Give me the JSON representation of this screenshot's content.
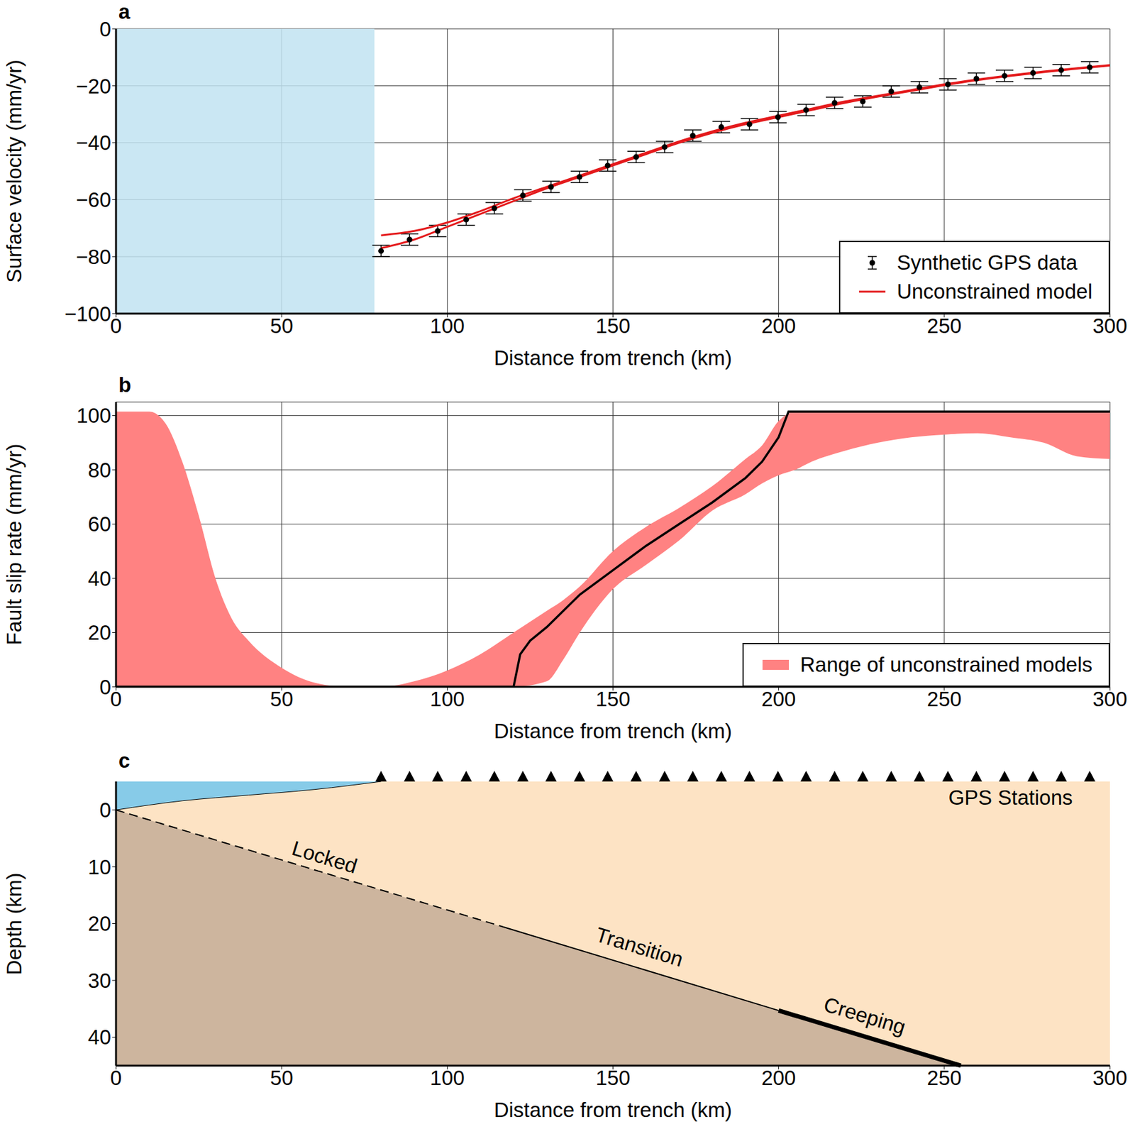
{
  "chart_data": [
    {
      "title": "a",
      "type": "line",
      "x_label": "Distance from trench (km)",
      "y_label": "Surface velocity (mm/yr)",
      "xlim": [
        0,
        300
      ],
      "xticks": [
        0,
        50,
        100,
        150,
        200,
        250,
        300
      ],
      "ylim": [
        -100,
        0
      ],
      "yticks": [
        {
          "value": -100,
          "label": "−100"
        },
        {
          "value": -80,
          "label": "−80"
        },
        {
          "value": -60,
          "label": "−60"
        },
        {
          "value": -40,
          "label": "−40"
        },
        {
          "value": -20,
          "label": "−20"
        },
        0
      ],
      "grid": true,
      "legend": "lower right",
      "shaded_region": {
        "x": [
          0,
          78
        ],
        "color": "#c1e3f1"
      },
      "series": [
        {
          "name": "Synthetic GPS data",
          "type": "scatter",
          "color": "#000000",
          "marker": "circle",
          "x": [
            80,
            88.6,
            97.1,
            105.7,
            114.2,
            122.8,
            131.3,
            139.9,
            148.4,
            157,
            165.6,
            174.1,
            182.7,
            191.2,
            199.8,
            208.3,
            216.9,
            225.4,
            234,
            242.5,
            251.1,
            259.7,
            268.2,
            276.8,
            285.3,
            293.9
          ],
          "values": [
            -78,
            -74,
            -71,
            -67,
            -63,
            -58.5,
            -55.5,
            -52,
            -48,
            -45,
            -41.5,
            -37.5,
            -34.5,
            -33.5,
            -31,
            -28.5,
            -26,
            -25.5,
            -22,
            -20.5,
            -19.5,
            -17.5,
            -16.5,
            -15.5,
            -14.5,
            -13.5
          ],
          "error": [
            2,
            2,
            2,
            2,
            2,
            2,
            2,
            2,
            2,
            2,
            2,
            2,
            2,
            2,
            2,
            2,
            2,
            2,
            2,
            2,
            2,
            2,
            2,
            2,
            2,
            2
          ]
        },
        {
          "name": "Unconstrained model",
          "type": "line",
          "color": "#e41a1c",
          "x": [
            80,
            90,
            100,
            110,
            120,
            130,
            140,
            150,
            160,
            170,
            180,
            190,
            200,
            210,
            220,
            230,
            240,
            250,
            260,
            270,
            280,
            290,
            300
          ],
          "upper": [
            -72.5,
            -71,
            -68,
            -64,
            -59.5,
            -55.5,
            -51.5,
            -47.5,
            -43.5,
            -39.5,
            -36,
            -33,
            -30.5,
            -28,
            -25.5,
            -23.5,
            -21.5,
            -19.5,
            -17.8,
            -16.3,
            -15,
            -13.8,
            -12.7
          ],
          "lower": [
            -77,
            -74,
            -69.5,
            -65,
            -60.5,
            -56,
            -52,
            -48,
            -44,
            -40,
            -36.5,
            -33.5,
            -31,
            -28.5,
            -26,
            -23.8,
            -21.8,
            -19.8,
            -18,
            -16.5,
            -15.2,
            -14,
            -12.9
          ]
        }
      ]
    },
    {
      "title": "b",
      "type": "line",
      "x_label": "Distance from trench (km)",
      "y_label": "Fault slip rate (mm/yr)",
      "xlim": [
        0,
        300
      ],
      "xticks": [
        0,
        50,
        100,
        150,
        200,
        250,
        300
      ],
      "ylim": [
        0,
        105
      ],
      "yticks": [
        0,
        20,
        40,
        60,
        80,
        100
      ],
      "grid": true,
      "legend": "lower right",
      "series": [
        {
          "name": "Range of unconstrained models",
          "type": "area",
          "color": "#ff8282",
          "x": [
            0,
            10,
            15,
            20,
            25,
            30,
            35,
            40,
            50,
            60,
            70,
            80,
            90,
            100,
            110,
            120,
            130,
            135,
            140,
            150,
            160,
            170,
            180,
            190,
            195,
            200,
            205,
            210,
            220,
            230,
            240,
            250,
            260,
            270,
            280,
            290,
            300
          ],
          "upper": [
            101.5,
            101.5,
            97,
            83,
            63,
            40,
            25,
            17,
            7,
            1.5,
            0,
            0,
            2,
            6,
            12,
            20,
            28,
            32,
            37,
            50,
            59,
            66,
            74,
            84,
            89,
            98,
            101.5,
            101.5,
            101.5,
            101.5,
            101.5,
            101.5,
            101.5,
            101.5,
            101.5,
            101.5,
            101.5
          ],
          "lower": [
            0,
            0,
            0,
            0,
            0,
            0,
            0,
            0,
            0,
            0,
            0,
            0,
            0,
            0,
            0,
            0,
            2,
            10,
            20,
            36,
            45,
            54,
            65,
            71,
            75,
            78,
            80,
            83,
            87,
            90,
            92,
            93,
            93.5,
            92,
            90,
            85,
            84
          ]
        },
        {
          "type": "line",
          "color": "#000000",
          "x": [
            0,
            120,
            122,
            125,
            130,
            140,
            150,
            160,
            170,
            180,
            190,
            195,
            200,
            203,
            300
          ],
          "values": [
            0,
            0,
            12,
            17,
            22,
            34,
            43,
            52,
            60,
            68,
            77,
            83,
            92,
            101.5,
            101.5
          ]
        }
      ]
    },
    {
      "title": "c",
      "type": "cross_section",
      "x_label": "Distance from trench (km)",
      "y_label": "Depth (km)",
      "xlim": [
        0,
        300
      ],
      "xticks": [
        0,
        50,
        100,
        150,
        200,
        250,
        300
      ],
      "ylim": [
        -5,
        45
      ],
      "yticks": [
        0,
        10,
        20,
        30,
        40
      ],
      "grid": false,
      "upper_plate": {
        "color": "#fde3c4"
      },
      "lower_plate": {
        "color": "#cdb59e",
        "x": [
          0,
          255
        ],
        "depth": [
          0,
          45
        ]
      },
      "water": {
        "color": "#87cbe8",
        "x": [
          0,
          20,
          40,
          60,
          80
        ],
        "depth": [
          0,
          -1.6,
          -2.6,
          -3.6,
          -5
        ]
      },
      "fault_segments": [
        {
          "label": "Locked",
          "line_style": "dashed",
          "x": [
            0,
            117
          ],
          "depth": [
            0,
            20.6
          ],
          "label_x": 63,
          "label_depth": 8.3
        },
        {
          "label": "Transition",
          "line_style": "solid",
          "x": [
            117,
            200
          ],
          "depth": [
            20.6,
            35.3
          ],
          "label_x": 158,
          "label_depth": 24.1
        },
        {
          "label": "Creeping",
          "line_style": "thick",
          "x": [
            200,
            255
          ],
          "depth": [
            35.3,
            45
          ],
          "label_x": 226,
          "label_depth": 36.2
        }
      ],
      "stations": {
        "label": "GPS Stations",
        "marker": "triangle",
        "color": "#000000",
        "x": [
          80,
          88.6,
          97.1,
          105.7,
          114.2,
          122.8,
          131.3,
          139.9,
          148.4,
          157,
          165.6,
          174.1,
          182.7,
          191.2,
          199.8,
          208.3,
          216.9,
          225.4,
          234,
          242.5,
          251.1,
          259.7,
          268.2,
          276.8,
          285.3,
          293.9
        ],
        "label_x": 270,
        "label_depth": -2.2
      }
    }
  ]
}
